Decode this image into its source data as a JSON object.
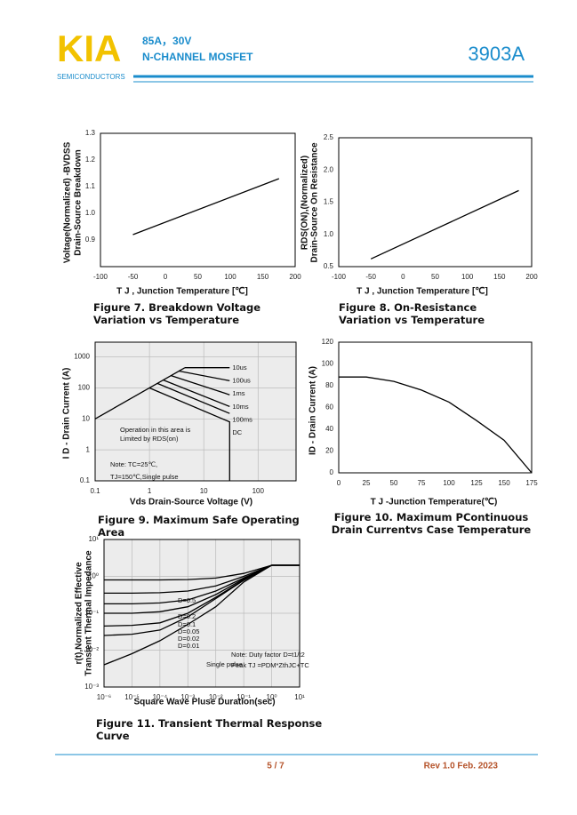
{
  "header": {
    "logo": "KIA",
    "logo_subtitle": "SEMICONDUCTORS",
    "rating": "85A，30V",
    "description": "N-CHANNEL MOSFET",
    "part_number": "3903A"
  },
  "chart_data": [
    {
      "type": "line",
      "title": "Figure 7.    Breakdown Voltage Variation vs Temperature",
      "xlabel": "T J , Junction Temperature [℃]",
      "ylabel": [
        "Voltage(Normalized) -BVDSS",
        "Drain-Source Breakdown"
      ],
      "xlim": [
        -100,
        200
      ],
      "xticks": [
        -100,
        -50,
        0,
        50,
        100,
        150,
        200
      ],
      "ylim": [
        0.8,
        1.3
      ],
      "yticks": [
        0.9,
        {
          "value": 1,
          "label": "1.0"
        },
        1.1,
        1.2,
        1.3
      ],
      "grid": false,
      "color": "#000000",
      "x": [
        -50,
        175
      ],
      "values": [
        0.92,
        1.13
      ]
    },
    {
      "type": "line",
      "title": "Figure 8. On-Resistance Variation vs Temperature",
      "xlabel": "T J , Junction Temperature [℃]",
      "ylabel": [
        "RDS(ON),(Normalized)",
        "Drain-Source On Resistance"
      ],
      "xlim": [
        -100,
        200
      ],
      "xticks": [
        -100,
        -50,
        0,
        50,
        100,
        150,
        200
      ],
      "ylim": [
        0.5,
        2.5
      ],
      "yticks": [
        0.5,
        {
          "value": 1,
          "label": "1.0"
        },
        1.5,
        {
          "value": 2,
          "label": "2.0"
        },
        2.5
      ],
      "grid": false,
      "color": "#000000",
      "x": [
        -50,
        180
      ],
      "values": [
        0.62,
        1.68
      ]
    },
    {
      "type": "line",
      "title": "Figure 9. Maximum Safe Operating Area",
      "xlabel": "Vds Drain-Source Voltage (V)",
      "ylabel": [
        "I D - Drain Current (A)"
      ],
      "xscale": "log",
      "yscale": "log",
      "xlim": [
        0.1,
        500
      ],
      "xticks": [
        0.1,
        1,
        10,
        100
      ],
      "ylim": [
        0.1,
        3000
      ],
      "yticks": [
        0.1,
        1,
        10,
        100,
        1000
      ],
      "grid": true,
      "color": "#000000",
      "limit_line": {
        "x": [
          0.1,
          4.5
        ],
        "values": [
          10,
          450
        ]
      },
      "series": [
        {
          "name": "10us",
          "x": [
            4.5,
            30
          ],
          "values": [
            450,
            450
          ]
        },
        {
          "name": "100us",
          "x": [
            3.5,
            30
          ],
          "values": [
            350,
            170
          ]
        },
        {
          "name": "1ms",
          "x": [
            2.5,
            30
          ],
          "values": [
            250,
            60
          ]
        },
        {
          "name": "10ms",
          "x": [
            1.8,
            30
          ],
          "values": [
            180,
            25
          ]
        },
        {
          "name": "100ms",
          "x": [
            1.4,
            30
          ],
          "values": [
            140,
            15
          ]
        },
        {
          "name": "DC",
          "x": [
            1,
            30,
            30
          ],
          "values": [
            100,
            8,
            0.1
          ]
        }
      ],
      "annotations": [
        "Operation in this area is",
        "Limited by RDS(on)",
        "Note: TC=25℃,",
        "TJ=150℃,Single pulse"
      ]
    },
    {
      "type": "line",
      "title": "Figure 10. Maximum  PContinuous Drain Currentvs Case Temperature",
      "xlabel": "T J -Junction Temperature(℃)",
      "ylabel": [
        "ID - Drain Current (A)"
      ],
      "xlim": [
        0,
        175
      ],
      "xticks": [
        0,
        25,
        50,
        75,
        100,
        125,
        150,
        175
      ],
      "ylim": [
        0,
        120
      ],
      "yticks": [
        0,
        20,
        40,
        60,
        80,
        100,
        120
      ],
      "grid": false,
      "color": "#000000",
      "x": [
        0,
        25,
        50,
        75,
        100,
        125,
        150,
        175
      ],
      "values": [
        88,
        88,
        84,
        76,
        65,
        48,
        30,
        0
      ]
    },
    {
      "type": "line",
      "title": "Figure 11. Transient Thermal Response Curve",
      "xlabel": "Square Wave Pluse Duration(sec)",
      "ylabel": [
        "r(t),Normalized Effective",
        "Transient Thermal Impedance"
      ],
      "xscale": "log",
      "yscale": "log",
      "xlim": [
        1e-06,
        10
      ],
      "xticks": [
        {
          "value": 1e-06,
          "label": "10⁻⁶"
        },
        {
          "value": 1e-05,
          "label": "10⁻⁵"
        },
        {
          "value": 0.0001,
          "label": "10⁻⁴"
        },
        {
          "value": 0.001,
          "label": "10⁻³"
        },
        {
          "value": 0.01,
          "label": "10⁻²"
        },
        {
          "value": 0.1,
          "label": "10⁻¹"
        },
        {
          "value": 1,
          "label": "10⁰"
        },
        {
          "value": 10,
          "label": "10¹"
        }
      ],
      "ylim": [
        0.001,
        10
      ],
      "yticks": [
        {
          "value": 0.001,
          "label": "10⁻³"
        },
        {
          "value": 0.01,
          "label": "10⁻²"
        },
        {
          "value": 0.1,
          "label": "10⁻¹"
        },
        {
          "value": 1,
          "label": "10⁰"
        },
        {
          "value": 10,
          "label": "10¹"
        }
      ],
      "grid": true,
      "color": "#000000",
      "x": [
        1e-06,
        1e-05,
        0.0001,
        0.001,
        0.01,
        0.1,
        1,
        10
      ],
      "series": [
        {
          "name": "D=0.5",
          "values": [
            0.8,
            0.8,
            0.8,
            0.82,
            0.9,
            1.2,
            2,
            2
          ]
        },
        {
          "name": "D=0.2",
          "values": [
            0.35,
            0.35,
            0.36,
            0.4,
            0.55,
            1,
            2,
            2
          ]
        },
        {
          "name": "D=0.1",
          "values": [
            0.18,
            0.18,
            0.19,
            0.23,
            0.4,
            0.9,
            2,
            2
          ]
        },
        {
          "name": "D=0.05",
          "values": [
            0.1,
            0.1,
            0.11,
            0.15,
            0.32,
            0.85,
            2,
            2
          ]
        },
        {
          "name": "D=0.02",
          "values": [
            0.045,
            0.047,
            0.055,
            0.1,
            0.27,
            0.8,
            2,
            2
          ]
        },
        {
          "name": "D=0.01",
          "values": [
            0.025,
            0.027,
            0.035,
            0.08,
            0.25,
            0.78,
            2,
            2
          ]
        },
        {
          "name": "Single pulse",
          "values": [
            0.004,
            0.008,
            0.018,
            0.05,
            0.15,
            0.7,
            2,
            2
          ]
        }
      ],
      "annotations": [
        "Note: Duty factor D=t1/t2",
        "Peak TJ =PDM*ZthJC+TC"
      ]
    }
  ],
  "footer": {
    "page": "5 / 7",
    "revision": "Rev 1.0 Feb. 2023"
  }
}
